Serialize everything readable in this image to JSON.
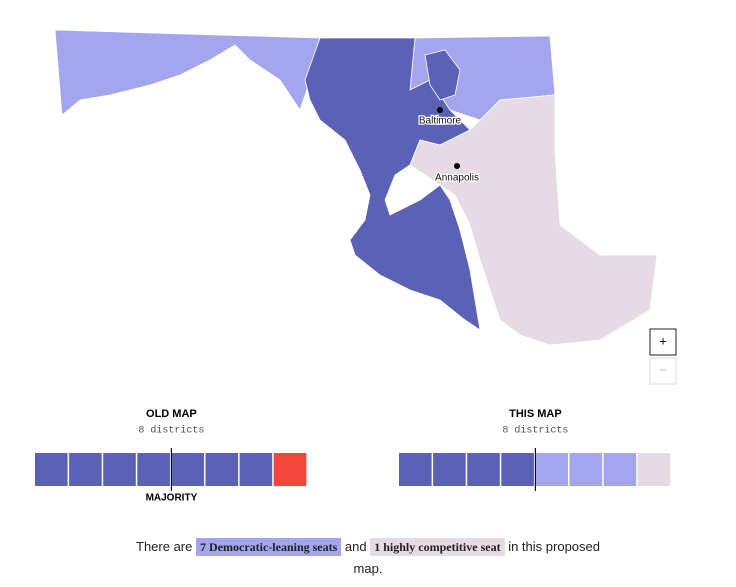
{
  "map": {
    "cities": [
      "Baltimore",
      "Annapolis"
    ],
    "zoom_in": "+",
    "zoom_out": "−"
  },
  "panels": [
    {
      "title": "OLD MAP",
      "subtitle": "8 districts",
      "majority_label": "MAJORITY",
      "seats": [
        "#5a62b5",
        "#5a62b5",
        "#5a62b5",
        "#5a62b5",
        "#5a62b5",
        "#5a62b5",
        "#5a62b5",
        "#f4463a"
      ]
    },
    {
      "title": "THIS MAP",
      "subtitle": "8 districts",
      "seats": [
        "#5a62b5",
        "#5a62b5",
        "#5a62b5",
        "#5a62b5",
        "#a3a6ec",
        "#a3a6ec",
        "#a3a6ec",
        "#e6dbe5"
      ]
    }
  ],
  "summary": {
    "prefix": "There are",
    "dem": "7 Democratic-leaning seats",
    "middle": "and",
    "tossup": "1 highly competitive seat",
    "suffix": "in this proposed map."
  }
}
